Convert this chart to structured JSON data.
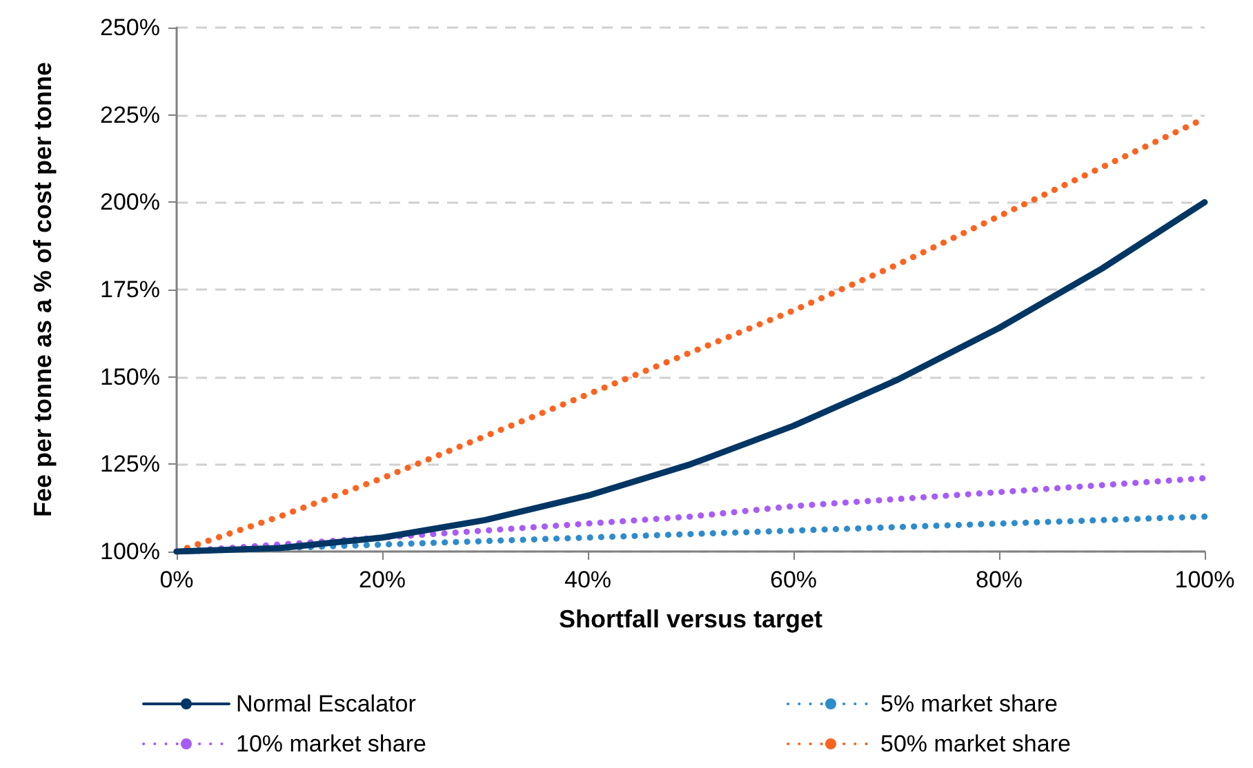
{
  "chart_data": {
    "type": "line",
    "xlabel": "Shortfall versus target",
    "ylabel": "Fee per tonne as a % of cost per tonne",
    "x": [
      0,
      10,
      20,
      30,
      40,
      50,
      60,
      70,
      80,
      90,
      100
    ],
    "series": [
      {
        "name": "Normal Escalator",
        "color": "#003663",
        "line_style": "solid",
        "values": [
          100,
          101,
          104,
          109,
          116,
          125,
          136,
          149,
          164,
          181,
          200
        ]
      },
      {
        "name": "5% market share",
        "color": "#2e8ccb",
        "line_style": "dotted",
        "values": [
          100,
          101,
          102,
          103,
          104,
          105,
          106,
          107,
          108,
          109,
          110
        ]
      },
      {
        "name": "10% market share",
        "color": "#a75cf6",
        "line_style": "dotted",
        "values": [
          100,
          102,
          104,
          106,
          108,
          110,
          113,
          115,
          117,
          119,
          121
        ]
      },
      {
        "name": "50% market share",
        "color": "#fb6420",
        "line_style": "dotted",
        "values": [
          100,
          110,
          121,
          133,
          145,
          157,
          169,
          182,
          196,
          210,
          224
        ]
      }
    ],
    "xlim": [
      0,
      100
    ],
    "xticks": [
      {
        "value": 0,
        "label": "0%"
      },
      {
        "value": 20,
        "label": "20%"
      },
      {
        "value": 40,
        "label": "40%"
      },
      {
        "value": 60,
        "label": "60%"
      },
      {
        "value": 80,
        "label": "80%"
      },
      {
        "value": 100,
        "label": "100%"
      }
    ],
    "ylim": [
      100,
      250
    ],
    "yticks": [
      {
        "value": 100,
        "label": "100%"
      },
      {
        "value": 125,
        "label": "125%"
      },
      {
        "value": 150,
        "label": "150%"
      },
      {
        "value": 175,
        "label": "175%"
      },
      {
        "value": 200,
        "label": "200%"
      },
      {
        "value": 225,
        "label": "225%"
      },
      {
        "value": 250,
        "label": "250%"
      }
    ],
    "grid": "y",
    "legend": "bottom",
    "marker": "none"
  }
}
